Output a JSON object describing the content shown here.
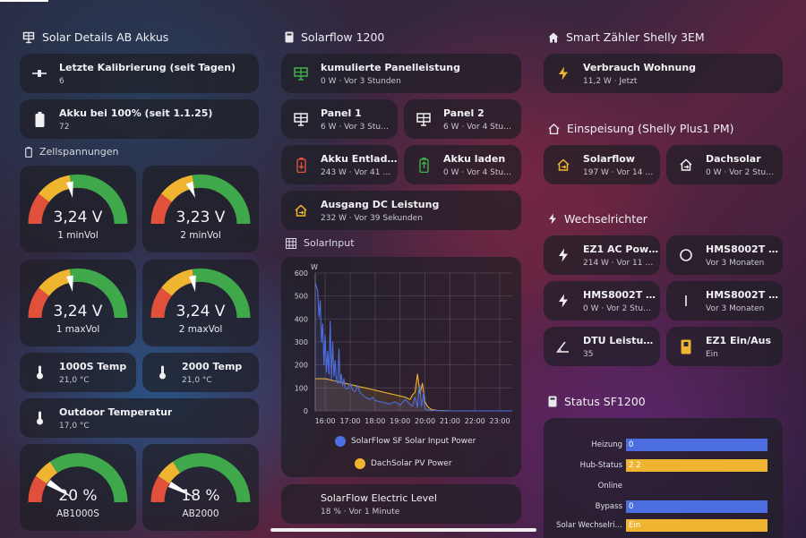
{
  "col1": {
    "section_title": "Solar Details AB Akkus",
    "calib": {
      "title": "Letzte Kalibrierung (seit Tagen)",
      "value": "6"
    },
    "full": {
      "title": "Akku bei 100% (seit 1.1.25)",
      "value": "72"
    },
    "cells_title": "Zellspannungen",
    "gauges": [
      {
        "value": "3,24 V",
        "label": "1 minVol",
        "level": 0.52
      },
      {
        "value": "3,23 V",
        "label": "2 minVol",
        "level": 0.42
      },
      {
        "value": "3,24 V",
        "label": "1 maxVol",
        "level": 0.52
      },
      {
        "value": "3,24 V",
        "label": "2 maxVol",
        "level": 0.52
      }
    ],
    "temp1": {
      "title": "1000S Temp",
      "value": "21,0 °C"
    },
    "temp2": {
      "title": "2000 Temp",
      "value": "21,0 °C"
    },
    "outdoor": {
      "title": "Outdoor Temperatur",
      "value": "17,0 °C"
    },
    "soc": [
      {
        "value": "20 %",
        "label": "AB1000S",
        "level": 0.2
      },
      {
        "value": "18 %",
        "label": "AB2000",
        "level": 0.18
      }
    ]
  },
  "col2": {
    "section_title": "Solarflow 1200",
    "panel_total": {
      "title": "kumulierte Panelleistung",
      "value": "0 W · Vor 3 Stunden"
    },
    "panel1": {
      "title": "Panel 1",
      "value": "6 W · Vor 3 Stu…"
    },
    "panel2": {
      "title": "Panel 2",
      "value": "6 W · Vor 4 Stu…"
    },
    "discharge": {
      "title": "Akku Entladen",
      "value": "243 W · Vor 41 …"
    },
    "charge": {
      "title": "Akku laden",
      "value": "0 W · Vor 4 Stu…"
    },
    "dc_out": {
      "title": "Ausgang DC Leistung",
      "value": "232 W · Vor 39 Sekunden"
    },
    "chart_title": "SolarInput",
    "electric": {
      "title": "SolarFlow Electric Level",
      "value": "18 % · Vor 1 Minute"
    }
  },
  "chart_data": {
    "type": "line",
    "ylabel": "W",
    "ylim": [
      0,
      600
    ],
    "yticks": [
      "600",
      "500",
      "400",
      "300",
      "200",
      "100",
      "0"
    ],
    "xticks": [
      "16:00",
      "17:00",
      "18:00",
      "19:00",
      "20:00",
      "21:00",
      "22:00",
      "23:00"
    ],
    "xlim": [
      15.6,
      23.5
    ],
    "series": [
      {
        "name": "SolarFlow SF Solar Input Power",
        "color": "#4d6ee0",
        "x": [
          15.6,
          15.7,
          15.75,
          15.8,
          15.85,
          15.9,
          15.95,
          16.0,
          16.05,
          16.1,
          16.15,
          16.2,
          16.25,
          16.3,
          16.35,
          16.4,
          16.45,
          16.5,
          16.55,
          16.6,
          16.65,
          16.7,
          16.75,
          16.8,
          16.9,
          17.0,
          17.1,
          17.2,
          17.3,
          17.4,
          17.5,
          17.6,
          17.7,
          17.8,
          17.9,
          18.0,
          18.2,
          18.4,
          18.6,
          18.8,
          19.0,
          19.2,
          19.4,
          19.5,
          19.6,
          19.7,
          19.75,
          19.8,
          19.85,
          19.9,
          19.95,
          20.0,
          20.1,
          20.2,
          20.4,
          20.6,
          20.8,
          21.0,
          22.0,
          23.0,
          23.5
        ],
        "y": [
          560,
          520,
          410,
          480,
          300,
          380,
          200,
          330,
          170,
          260,
          160,
          390,
          140,
          300,
          150,
          220,
          130,
          120,
          270,
          120,
          160,
          110,
          140,
          100,
          95,
          120,
          90,
          85,
          110,
          80,
          70,
          60,
          55,
          50,
          60,
          45,
          40,
          35,
          30,
          40,
          25,
          50,
          30,
          20,
          60,
          15,
          90,
          110,
          20,
          40,
          80,
          10,
          5,
          3,
          2,
          1,
          0,
          0,
          0,
          0,
          0
        ]
      },
      {
        "name": "DachSolar PV Power",
        "color": "#f0b530",
        "x": [
          15.6,
          16.0,
          16.2,
          16.4,
          16.6,
          16.8,
          17.0,
          17.2,
          17.4,
          17.6,
          17.8,
          18.0,
          18.2,
          18.4,
          18.6,
          18.8,
          19.0,
          19.2,
          19.4,
          19.5,
          19.6,
          19.7,
          19.8,
          19.9,
          20.0,
          20.1,
          20.2,
          20.3,
          20.5,
          21.0,
          21.5,
          22.0,
          23.0,
          23.5
        ],
        "y": [
          140,
          140,
          135,
          130,
          125,
          120,
          115,
          110,
          105,
          100,
          95,
          90,
          85,
          80,
          75,
          70,
          65,
          60,
          50,
          70,
          80,
          160,
          75,
          120,
          40,
          20,
          10,
          5,
          2,
          0,
          0,
          0,
          0,
          0
        ]
      }
    ]
  },
  "col3": {
    "meter_title": "Smart Zähler Shelly 3EM",
    "consumption": {
      "title": "Verbrauch Wohnung",
      "value": "11,2 W · Jetzt"
    },
    "feed_title": "Einspeisung (Shelly Plus1 PM)",
    "feed1": {
      "title": "Solarflow",
      "value": "197 W · Vor 14 …"
    },
    "feed2": {
      "title": "Dachsolar",
      "value": "0 W · Vor 2 Stu…"
    },
    "inverter_title": "Wechselrichter",
    "inv1": {
      "title": "EZ1 AC Power",
      "value": "214 W · Vor 11 …"
    },
    "inv2": {
      "title": "HMS8002T A…",
      "value": "Vor 3 Monaten"
    },
    "inv3": {
      "title": "HMS8002T A…",
      "value": "0 W · Vor 2 Stu…"
    },
    "inv4": {
      "title": "HMS8002T Ein",
      "value": "Vor 3 Monaten"
    },
    "inv5": {
      "title": "DTU Leistung…",
      "value": "35"
    },
    "inv6": {
      "title": "EZ1 Ein/Aus",
      "value": "Ein"
    },
    "status_title": "Status SF1200",
    "status_rows": [
      {
        "label": "Heizung",
        "text": "0",
        "color": "#4d6ee0",
        "fill": 1.0
      },
      {
        "label": "Hub-Status",
        "text": "2  2",
        "color": "#f0b530",
        "fill": 1.0
      },
      {
        "label": "Online",
        "text": "",
        "color": "",
        "fill": 0
      },
      {
        "label": "Bypass",
        "text": "0",
        "color": "#4d6ee0",
        "fill": 1.0
      },
      {
        "label": "Solar Wechselri…",
        "text": "Ein",
        "color": "#f0b530",
        "fill": 1.0
      }
    ]
  }
}
